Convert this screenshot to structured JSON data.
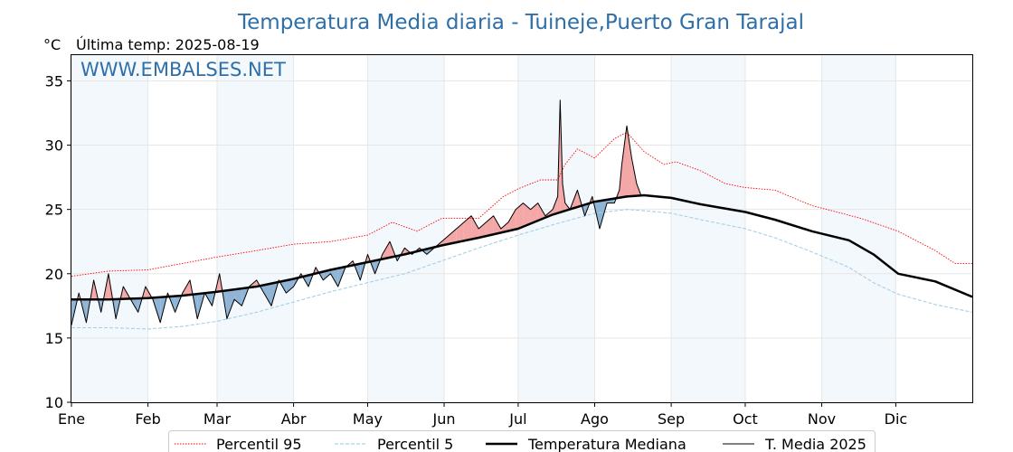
{
  "header": {
    "title": "Temperatura Media diaria - Tuineje,Puerto Gran Tarajal",
    "unit": "°C",
    "last_temp": "Última temp: 2025-08-19",
    "watermark": "WWW.EMBALSES.NET"
  },
  "chart_data": {
    "type": "line",
    "title": "Temperatura Media diaria - Tuineje,Puerto Gran Tarajal",
    "ylabel": "°C",
    "ylim": [
      10,
      37
    ],
    "xlim": [
      0,
      365
    ],
    "yticks": [
      10,
      15,
      20,
      25,
      30,
      35
    ],
    "months": [
      "Ene",
      "Feb",
      "Mar",
      "Abr",
      "May",
      "Jun",
      "Jul",
      "Ago",
      "Sep",
      "Oct",
      "Nov",
      "Dic"
    ],
    "grid": true,
    "legend_position": "bottom",
    "x_unit": "day of year",
    "series": [
      {
        "name": "Percentil 95",
        "color": "#ff0000",
        "style": "dotted",
        "x": [
          0,
          15,
          31,
          45,
          59,
          75,
          90,
          105,
          120,
          130,
          140,
          150,
          165,
          175,
          181,
          190,
          197,
          200,
          205,
          212,
          220,
          225,
          232,
          240,
          245,
          255,
          265,
          273,
          285,
          300,
          320,
          335,
          350,
          358,
          365
        ],
        "values": [
          19.8,
          20.2,
          20.3,
          20.8,
          21.3,
          21.8,
          22.3,
          22.5,
          23.0,
          24.0,
          23.3,
          24.3,
          24.3,
          26.0,
          26.6,
          27.3,
          27.3,
          28.5,
          29.7,
          29.0,
          30.5,
          31.0,
          29.5,
          28.5,
          28.7,
          28.0,
          27.0,
          26.7,
          26.5,
          25.3,
          24.3,
          23.3,
          21.8,
          20.8,
          20.8
        ]
      },
      {
        "name": "Percentil 5",
        "color": "#a6d0e4",
        "style": "dashed",
        "x": [
          0,
          15,
          31,
          45,
          59,
          75,
          90,
          105,
          120,
          135,
          150,
          165,
          181,
          195,
          212,
          225,
          232,
          243,
          255,
          273,
          285,
          300,
          315,
          325,
          335,
          350,
          365
        ],
        "values": [
          15.8,
          15.8,
          15.7,
          15.9,
          16.3,
          17.0,
          17.8,
          18.6,
          19.3,
          20.0,
          21.0,
          22.0,
          23.0,
          23.8,
          24.7,
          25.0,
          24.9,
          24.7,
          24.2,
          23.5,
          22.8,
          21.7,
          20.5,
          19.3,
          18.4,
          17.6,
          17.0
        ]
      },
      {
        "name": "Temperatura Mediana",
        "color": "#000000",
        "style": "solid-thick",
        "x": [
          0,
          15,
          31,
          45,
          59,
          75,
          90,
          105,
          120,
          135,
          150,
          165,
          181,
          195,
          212,
          225,
          232,
          243,
          255,
          273,
          285,
          300,
          315,
          325,
          335,
          350,
          365
        ],
        "values": [
          18.0,
          18.0,
          18.1,
          18.3,
          18.6,
          19.0,
          19.6,
          20.3,
          20.9,
          21.5,
          22.2,
          22.8,
          23.5,
          24.6,
          25.6,
          26.0,
          26.1,
          25.9,
          25.4,
          24.8,
          24.2,
          23.3,
          22.6,
          21.5,
          20.0,
          19.4,
          18.2
        ]
      },
      {
        "name": "T. Media 2025",
        "color": "#000000",
        "style": "solid-thin",
        "x": [
          0,
          3,
          6,
          9,
          12,
          15,
          18,
          21,
          24,
          27,
          30,
          33,
          36,
          39,
          42,
          45,
          48,
          51,
          54,
          57,
          60,
          63,
          66,
          69,
          72,
          75,
          78,
          81,
          84,
          87,
          90,
          93,
          96,
          99,
          102,
          105,
          108,
          111,
          114,
          117,
          120,
          123,
          126,
          129,
          132,
          135,
          138,
          141,
          144,
          147,
          150,
          153,
          156,
          159,
          162,
          165,
          168,
          171,
          174,
          177,
          180,
          183,
          186,
          189,
          192,
          195,
          197,
          198,
          199,
          200,
          202,
          205,
          208,
          211,
          214,
          217,
          220,
          222,
          223,
          225,
          227,
          229,
          231
        ],
        "values": [
          16.0,
          18.5,
          16.2,
          19.5,
          17.0,
          20.0,
          16.5,
          19.0,
          18.0,
          17.0,
          19.0,
          18.0,
          16.2,
          18.5,
          17.0,
          18.5,
          19.5,
          16.5,
          18.5,
          17.5,
          20.0,
          16.5,
          18.0,
          17.5,
          19.0,
          19.5,
          18.5,
          17.5,
          19.5,
          18.5,
          19.0,
          20.0,
          19.0,
          20.5,
          19.5,
          20.0,
          19.0,
          20.5,
          21.0,
          19.5,
          21.5,
          20.0,
          21.5,
          22.5,
          21.0,
          22.0,
          21.5,
          22.0,
          21.5,
          22.0,
          22.5,
          23.0,
          23.5,
          24.0,
          24.5,
          23.5,
          24.0,
          24.5,
          23.5,
          24.0,
          25.0,
          25.5,
          25.0,
          25.5,
          24.5,
          25.0,
          26.0,
          33.5,
          27.0,
          25.5,
          25.0,
          26.5,
          24.5,
          26.0,
          23.5,
          25.5,
          25.5,
          26.5,
          28.5,
          31.5,
          29.0,
          27.0,
          26.0
        ]
      }
    ]
  },
  "legend": {
    "p95": "Percentil 95",
    "p5": "Percentil 5",
    "median": "Temperatura Mediana",
    "media2025": "T. Media 2025"
  }
}
